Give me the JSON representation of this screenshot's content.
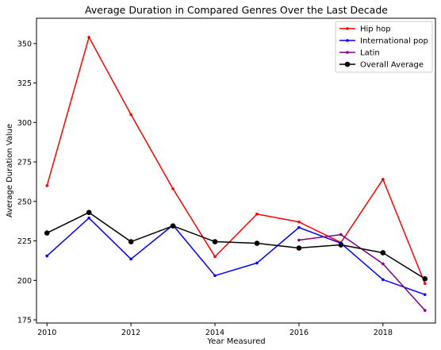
{
  "chart_data": {
    "type": "line",
    "title": "Average Duration in Compared Genres Over the Last Decade",
    "xlabel": "Year Measured",
    "ylabel": "Average Duration Value",
    "xlim": [
      2009.75,
      2019.25
    ],
    "ylim": [
      173,
      366
    ],
    "xticks": [
      2010,
      2012,
      2014,
      2016,
      2018
    ],
    "yticks": [
      175,
      200,
      225,
      250,
      275,
      300,
      325,
      350
    ],
    "grid": false,
    "legend_position": "top-right",
    "series": [
      {
        "name": "Hip hop",
        "color": "#ff0000",
        "marker": "small",
        "x": [
          2010,
          2011,
          2012,
          2013,
          2014,
          2015,
          2016,
          2017,
          2018,
          2019
        ],
        "y": [
          260,
          354,
          305,
          258,
          215,
          242,
          237,
          224,
          264,
          198
        ]
      },
      {
        "name": "International pop",
        "color": "#0000ff",
        "marker": "small",
        "x": [
          2010,
          2011,
          2012,
          2013,
          2014,
          2015,
          2016,
          2017,
          2018,
          2019
        ],
        "y": [
          215.5,
          239.5,
          213.5,
          235,
          203,
          211,
          233.5,
          223.5,
          200.5,
          191
        ]
      },
      {
        "name": "Latin",
        "color": "#800080",
        "marker": "small",
        "x": [
          2016,
          2017,
          2018,
          2019
        ],
        "y": [
          225.5,
          229,
          210.5,
          181
        ]
      },
      {
        "name": "Overall Average",
        "color": "#000000",
        "marker": "large",
        "x": [
          2010,
          2011,
          2012,
          2013,
          2014,
          2015,
          2016,
          2017,
          2018,
          2019
        ],
        "y": [
          230,
          243,
          224.5,
          234.5,
          224.5,
          223.5,
          220.5,
          222.5,
          217.5,
          201
        ]
      }
    ]
  }
}
